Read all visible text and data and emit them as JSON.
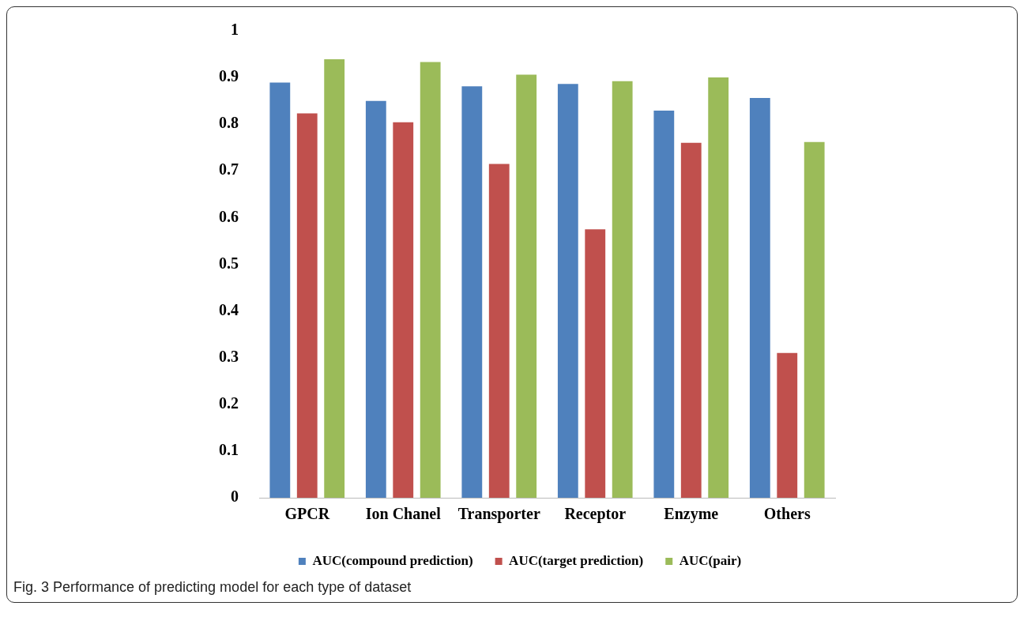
{
  "chart_data": {
    "type": "bar",
    "categories": [
      "GPCR",
      "Ion Chanel",
      "Transporter",
      "Receptor",
      "Enzyme",
      "Others"
    ],
    "series": [
      {
        "name": "AUC(compound prediction)",
        "color": "#4f81bd",
        "values": [
          0.889,
          0.85,
          0.881,
          0.886,
          0.829,
          0.856
        ]
      },
      {
        "name": "AUC(target prediction)",
        "color": "#c0504d",
        "values": [
          0.823,
          0.804,
          0.715,
          0.575,
          0.76,
          0.31
        ]
      },
      {
        "name": "AUC(pair)",
        "color": "#9bbb59",
        "values": [
          0.939,
          0.933,
          0.906,
          0.892,
          0.9,
          0.762
        ]
      }
    ],
    "ylim": [
      0,
      1
    ],
    "yticks": [
      0,
      0.1,
      0.2,
      0.3,
      0.4,
      0.5,
      0.6,
      0.7,
      0.8,
      0.9,
      1
    ],
    "grid": false,
    "legend": "bottom",
    "annotations": [
      "Fig. 3 Performance of predicting model for each type of dataset"
    ]
  }
}
